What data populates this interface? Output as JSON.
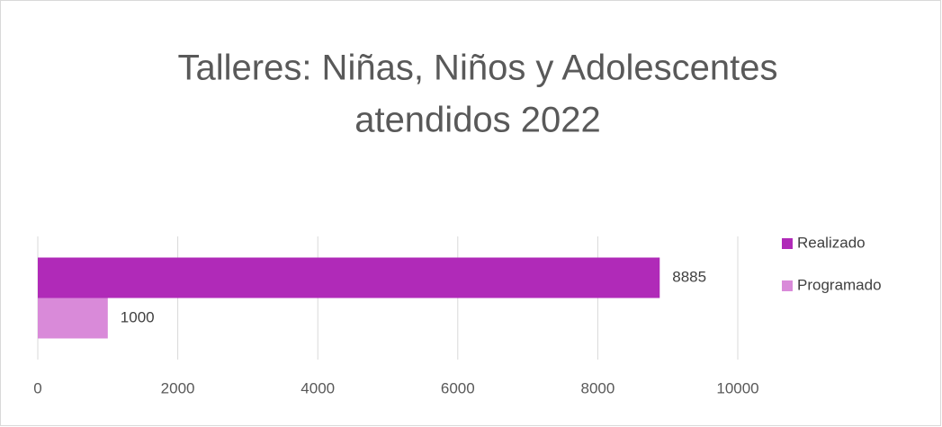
{
  "chart_data": {
    "type": "hbar",
    "title": [
      "Talleres:  Niñas, Niños y Adolescentes",
      "atendidos 2022"
    ],
    "categories": [
      null
    ],
    "series": [
      {
        "name": "Realizado",
        "color": "#b02ab8",
        "values": [
          8885
        ]
      },
      {
        "name": "Programado",
        "color": "#d98ad9",
        "values": [
          1000
        ]
      }
    ],
    "xlim": [
      0,
      10000
    ],
    "xticks": [
      0,
      2000,
      4000,
      6000,
      8000,
      10000
    ],
    "grid": true,
    "legend": "right"
  }
}
